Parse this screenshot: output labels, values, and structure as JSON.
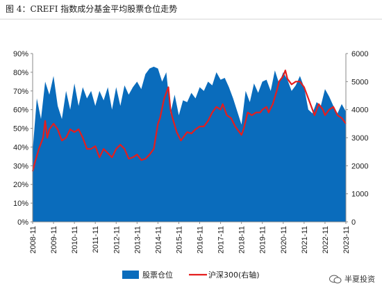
{
  "figure_title": "图 4：CREFI 指数成分基金平均股票仓位走势",
  "watermark": "半夏投资",
  "colors": {
    "area": "#0a6cbc",
    "line": "#e41e1e",
    "text": "#1a1a1a"
  },
  "chart_data": {
    "type": "area",
    "x_ticks": [
      "2008-11",
      "2009-11",
      "2010-11",
      "2011-11",
      "2012-11",
      "2013-11",
      "2014-11",
      "2015-11",
      "2016-11",
      "2017-11",
      "2018-11",
      "2019-11",
      "2020-11",
      "2021-11",
      "2022-11",
      "2023-11"
    ],
    "y_left_ticks": [
      "0%",
      "10%",
      "20%",
      "30%",
      "40%",
      "50%",
      "60%",
      "70%",
      "80%",
      "90%"
    ],
    "y_right_ticks": [
      "0",
      "1000",
      "2000",
      "3000",
      "4000",
      "5000",
      "6000"
    ],
    "ylim_left": [
      0,
      90
    ],
    "ylim_right": [
      0,
      6000
    ],
    "series": [
      {
        "name": "股票仓位",
        "type": "area",
        "axis": "left",
        "x": [
          2008.9,
          2009.1,
          2009.3,
          2009.5,
          2009.7,
          2009.9,
          2010.1,
          2010.3,
          2010.5,
          2010.7,
          2010.9,
          2011.1,
          2011.3,
          2011.5,
          2011.7,
          2011.9,
          2012.1,
          2012.3,
          2012.5,
          2012.7,
          2012.9,
          2013.1,
          2013.3,
          2013.5,
          2013.7,
          2013.9,
          2014.1,
          2014.3,
          2014.5,
          2014.7,
          2014.9,
          2015.1,
          2015.3,
          2015.5,
          2015.7,
          2015.9,
          2016.1,
          2016.3,
          2016.5,
          2016.7,
          2016.9,
          2017.1,
          2017.3,
          2017.5,
          2017.7,
          2017.9,
          2018.1,
          2018.3,
          2018.5,
          2018.7,
          2018.9,
          2019.1,
          2019.3,
          2019.5,
          2019.7,
          2019.9,
          2020.1,
          2020.3,
          2020.5,
          2020.7,
          2020.9,
          2021.1,
          2021.3,
          2021.5,
          2021.7,
          2021.9,
          2022.1,
          2022.3,
          2022.5,
          2022.7,
          2022.9,
          2023.1,
          2023.3,
          2023.5,
          2023.7,
          2023.9
        ],
        "values": [
          38,
          66,
          55,
          75,
          68,
          78,
          62,
          55,
          70,
          60,
          74,
          62,
          72,
          66,
          70,
          62,
          70,
          65,
          72,
          60,
          72,
          62,
          73,
          68,
          72,
          75,
          71,
          79,
          82,
          83,
          82,
          75,
          80,
          58,
          68,
          57,
          65,
          64,
          69,
          66,
          72,
          70,
          75,
          73,
          80,
          76,
          77,
          72,
          66,
          59,
          52,
          70,
          64,
          74,
          69,
          75,
          76,
          70,
          81,
          74,
          80,
          76,
          70,
          73,
          78,
          72,
          60,
          58,
          64,
          62,
          71,
          67,
          62,
          58,
          63,
          59
        ],
        "legend_style": "box"
      },
      {
        "name": "沪深300(右轴)",
        "type": "line",
        "axis": "right",
        "x": [
          2008.9,
          2009.0,
          2009.2,
          2009.4,
          2009.5,
          2009.6,
          2009.7,
          2009.9,
          2010.1,
          2010.3,
          2010.5,
          2010.7,
          2010.9,
          2011.1,
          2011.3,
          2011.5,
          2011.7,
          2011.9,
          2012.1,
          2012.3,
          2012.5,
          2012.7,
          2012.9,
          2013.1,
          2013.3,
          2013.5,
          2013.7,
          2013.9,
          2014.1,
          2014.3,
          2014.5,
          2014.7,
          2014.9,
          2015.0,
          2015.2,
          2015.4,
          2015.5,
          2015.6,
          2015.8,
          2016.0,
          2016.1,
          2016.3,
          2016.5,
          2016.7,
          2016.9,
          2017.1,
          2017.3,
          2017.5,
          2017.7,
          2017.9,
          2018.0,
          2018.2,
          2018.4,
          2018.6,
          2018.8,
          2018.9,
          2019.0,
          2019.2,
          2019.4,
          2019.6,
          2019.8,
          2019.9,
          2020.1,
          2020.2,
          2020.4,
          2020.6,
          2020.7,
          2020.9,
          2021.0,
          2021.1,
          2021.3,
          2021.5,
          2021.7,
          2021.9,
          2022.1,
          2022.3,
          2022.4,
          2022.6,
          2022.8,
          2022.9,
          2023.1,
          2023.3,
          2023.5,
          2023.7,
          2023.9
        ],
        "values": [
          1800,
          2100,
          2600,
          3000,
          3600,
          3000,
          3300,
          3500,
          3300,
          2900,
          3000,
          3300,
          3200,
          3300,
          3000,
          2600,
          2600,
          2700,
          2300,
          2600,
          2450,
          2300,
          2600,
          2750,
          2600,
          2250,
          2300,
          2400,
          2200,
          2250,
          2400,
          2600,
          3500,
          3700,
          4400,
          4800,
          4000,
          3700,
          3200,
          2900,
          3000,
          3200,
          3150,
          3300,
          3400,
          3400,
          3600,
          3900,
          4100,
          4000,
          4200,
          3800,
          3700,
          3400,
          3200,
          3100,
          3300,
          3900,
          3800,
          3900,
          3900,
          4000,
          4100,
          3900,
          4200,
          4700,
          5000,
          5200,
          5400,
          5100,
          4900,
          5000,
          5000,
          4800,
          4400,
          4000,
          3800,
          4200,
          4000,
          3800,
          4000,
          4100,
          3800,
          3700,
          3500
        ],
        "legend_style": "line"
      }
    ],
    "grid": false,
    "legend_position": "bottom"
  }
}
